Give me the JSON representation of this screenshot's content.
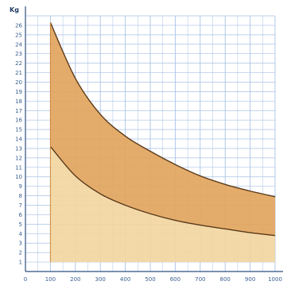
{
  "chart_data": {
    "type": "area",
    "ylabel": "Kg",
    "xlim": [
      0,
      1000
    ],
    "ylim": [
      0,
      27
    ],
    "x_ticks": [
      0,
      100,
      200,
      300,
      400,
      500,
      600,
      700,
      800,
      900,
      1000
    ],
    "x_tick_labels": [
      "0",
      "100",
      "200",
      "300",
      "400",
      "500",
      "600",
      "700",
      "800",
      "900",
      "1000"
    ],
    "y_ticks": [
      1,
      2,
      3,
      4,
      5,
      6,
      7,
      8,
      9,
      10,
      11,
      12,
      13,
      14,
      15,
      16,
      17,
      18,
      19,
      20,
      21,
      22,
      23,
      24,
      25,
      26
    ],
    "grid": true,
    "series": [
      {
        "role": "upper",
        "x": [
          100,
          200,
          300,
          400,
          500,
          600,
          700,
          800,
          900,
          1000
        ],
        "y": [
          26.3,
          20.4,
          16.6,
          14.3,
          12.7,
          11.3,
          10.1,
          9.2,
          8.5,
          7.9
        ]
      },
      {
        "role": "lower",
        "x": [
          100,
          200,
          300,
          400,
          500,
          600,
          700,
          800,
          900,
          1000
        ],
        "y": [
          13.2,
          10.1,
          8.2,
          7.0,
          6.1,
          5.4,
          4.9,
          4.5,
          4.1,
          3.8
        ]
      }
    ],
    "baseline_y": 1,
    "colors": {
      "upper_band": "#e2a55e",
      "lower_band": "#f3d59e",
      "curve": "#5a3a1a",
      "grid": "#a9c2e6",
      "axis": "#2f4f7f"
    }
  }
}
